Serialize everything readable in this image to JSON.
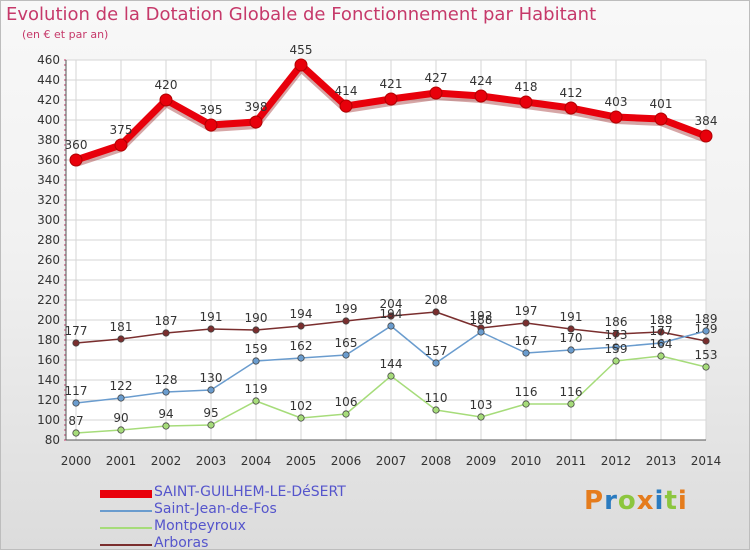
{
  "title": "Evolution de la Dotation Globale de Fonctionnement par Habitant",
  "subtitle": "(en € et par an)",
  "logo": {
    "text": "Proxiti",
    "letter_colors": [
      "#e57c1d",
      "#2a7bc0",
      "#8cc63e",
      "#e57c1d",
      "#2a7bc0",
      "#8cc63e",
      "#e57c1d"
    ]
  },
  "chart_data": {
    "type": "line",
    "title": "Evolution de la Dotation Globale de Fonctionnement par Habitant",
    "subtitle": "(en € et par an)",
    "x": [
      "2000",
      "2001",
      "2002",
      "2003",
      "2004",
      "2005",
      "2006",
      "2007",
      "2008",
      "2009",
      "2010",
      "2011",
      "2012",
      "2013",
      "2014"
    ],
    "ylim": [
      80,
      460
    ],
    "yticks": [
      80,
      100,
      120,
      140,
      160,
      180,
      200,
      220,
      240,
      260,
      280,
      300,
      320,
      340,
      360,
      380,
      400,
      420,
      440,
      460
    ],
    "grid": true,
    "legend_position": "bottom-left",
    "series": [
      {
        "name": "SAINT-GUILHEM-LE-DéSERT",
        "color": "#e8000b",
        "values": [
          360,
          375,
          420,
          395,
          398,
          455,
          414,
          421,
          427,
          424,
          418,
          412,
          403,
          401,
          384
        ]
      },
      {
        "name": "Saint-Jean-de-Fos",
        "color": "#6a9cce",
        "values": [
          117,
          122,
          128,
          130,
          159,
          162,
          165,
          194,
          157,
          188,
          167,
          170,
          173,
          177,
          189
        ]
      },
      {
        "name": "Montpeyroux",
        "color": "#a6dc7a",
        "values": [
          87,
          90,
          94,
          95,
          119,
          102,
          106,
          144,
          110,
          103,
          116,
          116,
          159,
          164,
          153
        ]
      },
      {
        "name": "Arboras",
        "color": "#7a2e2e",
        "values": [
          177,
          181,
          187,
          191,
          190,
          194,
          199,
          204,
          208,
          192,
          197,
          191,
          186,
          188,
          179
        ]
      }
    ]
  }
}
